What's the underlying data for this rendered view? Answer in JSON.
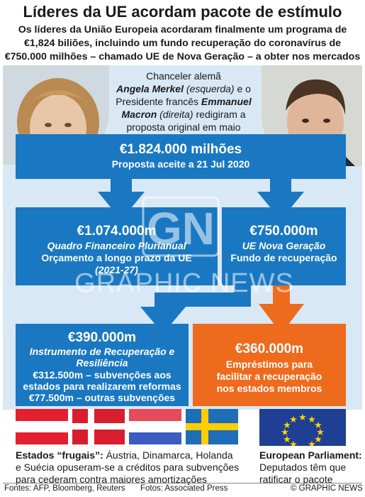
{
  "title": "Líderes da UE acordam pacote de estímulo",
  "subtitle": "Os líderes da União Europeia acordaram finalmente um programa de €1,824 biliões, incluindo um fundo recuperação do coronavírus de €750.000 milhões – chamado UE de Nova Geração – a obter nos mercados",
  "caption": {
    "line1": "Chanceler alemã",
    "merkel": "Angela Merkel",
    "merkel_role": "(esquerda)",
    "connector": "e o Presidente francês",
    "macron": "Emmanuel Macron",
    "macron_role": "(direita)",
    "rest": "redigiram a proposta original em maio"
  },
  "total": {
    "amount": "€1.824.000 milhões",
    "label": "Proposta aceite a 21 Jul 2020"
  },
  "mff": {
    "amount": "€1.074.000m",
    "name": "Quadro Financeiro Plurianual",
    "desc": "Orçamento a longo prazo da UE",
    "years": "(2021-27)"
  },
  "ngeu": {
    "amount": "€750.000m",
    "name": "UE Nova Geração",
    "desc": "Fundo de recuperação"
  },
  "rrf": {
    "amount": "€390.000m",
    "name_l1": "Instrumento de Recuperação e",
    "name_l2": "Resiliência",
    "grants_l1": "€312.500m – subvenções aos",
    "grants_l2": "estados para realizarem reformas",
    "other": "€77.500m – outras subvenções"
  },
  "loans": {
    "amount": "€360.000m",
    "l1": "Empréstimos para",
    "l2": "facilitar a recuperação",
    "l3": "nos estados membros"
  },
  "frugal": {
    "label": "Estados “frugais”:",
    "l1_rest": "Áustria, Dinamarca, Holanda",
    "l2": "e Suécia opuseram-se a créditos para subvenções",
    "l3": "para cederam contra maiores amortizações"
  },
  "parliament": {
    "label": "European Parliament:",
    "l2": "Deputados têm que",
    "l3": "ratificar o pacote"
  },
  "watermark": {
    "mark": "GN",
    "text": "GRAPHIC NEWS"
  },
  "footer": {
    "sources": "Fontes: AFP, Bloomberg, Reuters",
    "photos": "Fotos: Associated Press",
    "credit": "© GRAPHIC NEWS"
  },
  "colors": {
    "blue": "#1a78c2",
    "orange": "#ee6b1d",
    "panel": "#d9e8f5",
    "eu_flag": "#1f3f94",
    "eu_stars": "#ffd400"
  },
  "icons": [
    "down-arrow-icon",
    "eu-flag-icon",
    "austria-flag",
    "denmark-flag",
    "netherlands-flag",
    "sweden-flag"
  ]
}
